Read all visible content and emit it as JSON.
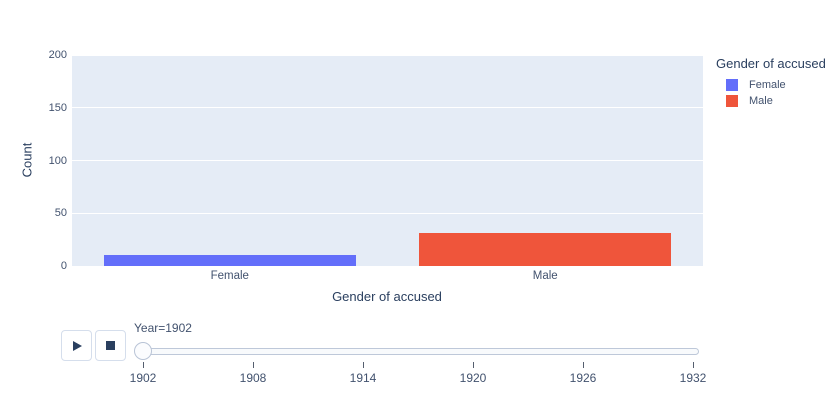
{
  "chart_data": {
    "type": "bar",
    "title": "",
    "xlabel": "Gender of accused",
    "ylabel": "Count",
    "categories": [
      "Female",
      "Male"
    ],
    "values": [
      10,
      31
    ],
    "bar_colors": [
      "#636EFA",
      "#EF553B"
    ],
    "ylim": [
      0,
      200
    ],
    "yticks": [
      0,
      50,
      100,
      150,
      200
    ],
    "grid": true,
    "plot_bgcolor": "#E5ECF6",
    "legend": {
      "title": "Gender of accused",
      "position": "right",
      "entries": [
        {
          "label": "Female",
          "color": "#636EFA"
        },
        {
          "label": "Male",
          "color": "#EF553B"
        }
      ]
    }
  },
  "controls": {
    "play_button": "play-icon",
    "stop_button": "stop-icon",
    "slider": {
      "label": "Year=1902",
      "current_value": "1902",
      "tick_labels": [
        "1902",
        "1908",
        "1914",
        "1920",
        "1926",
        "1932"
      ]
    }
  }
}
